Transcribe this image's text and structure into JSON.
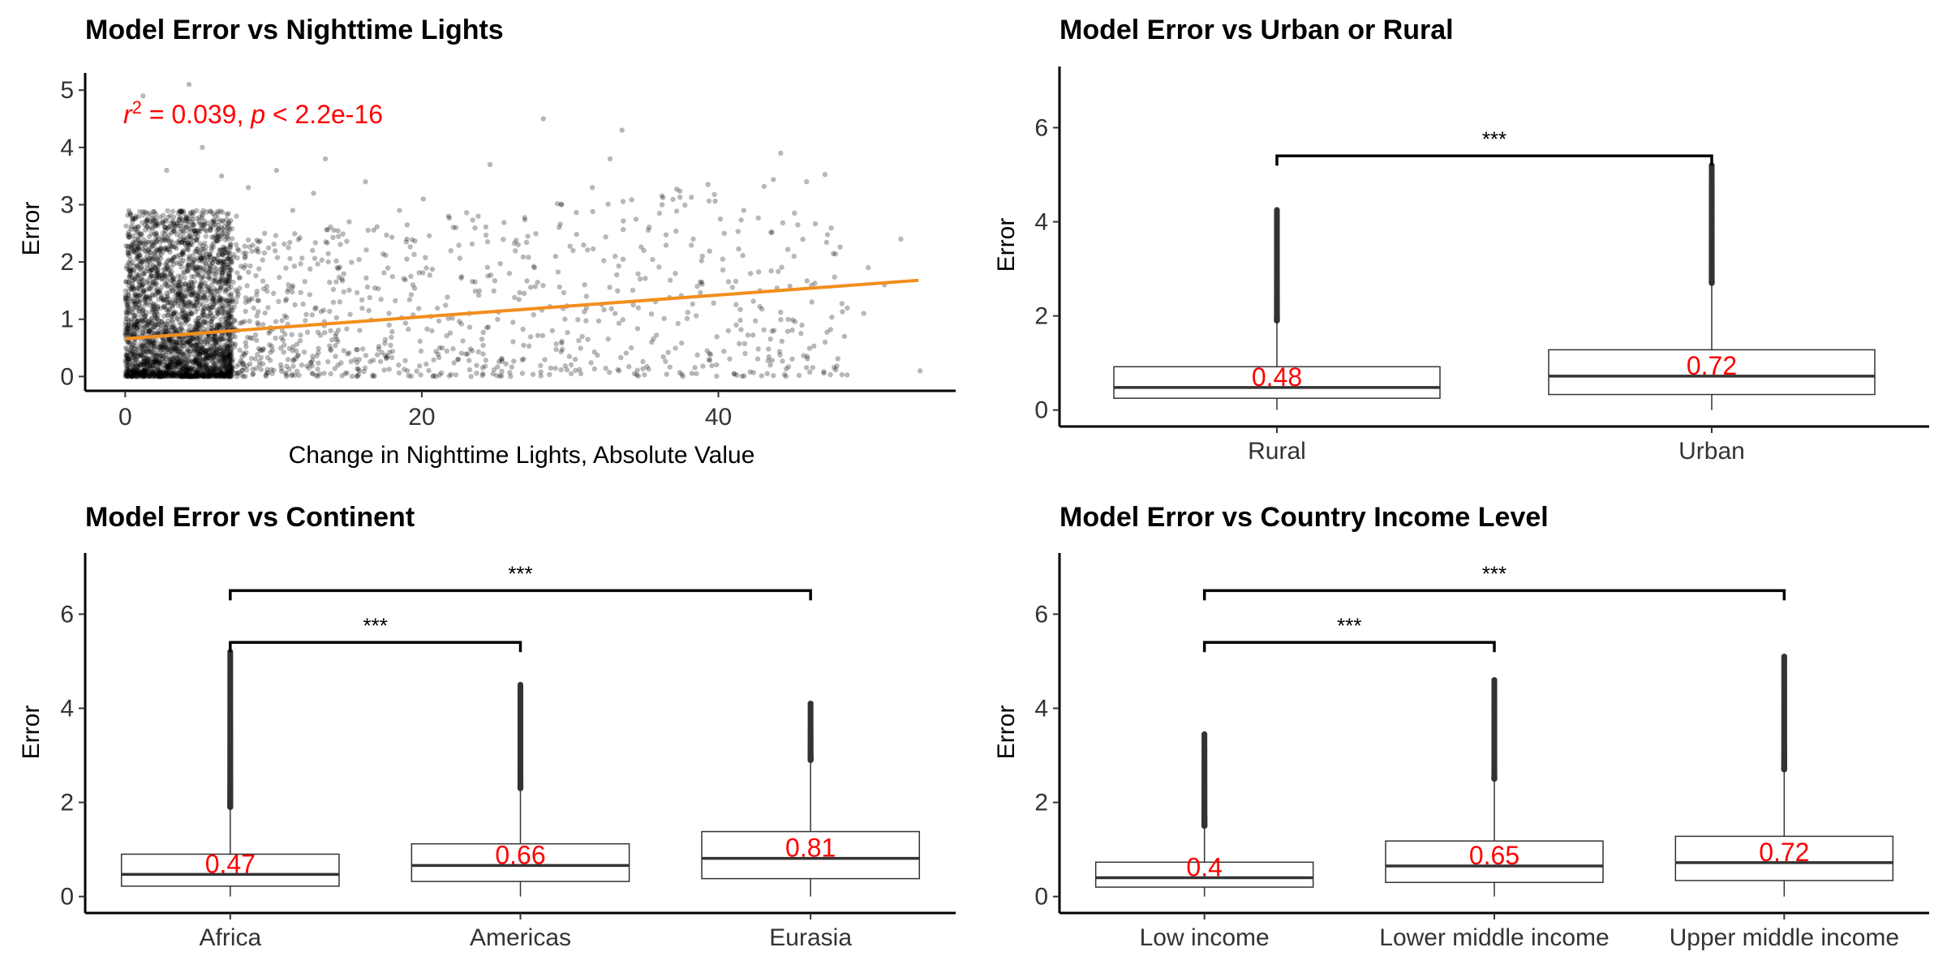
{
  "chart_data": [
    {
      "type": "scatter",
      "title": "Model Error vs Nighttime Lights",
      "xlabel": "Change in Nighttime Lights, Absolute Value",
      "ylabel": "Error",
      "xlim": [
        -2.7,
        56
      ],
      "ylim": [
        -0.25,
        5.3
      ],
      "xticks": [
        0,
        20,
        40
      ],
      "yticks": [
        0,
        1,
        2,
        3,
        4,
        5
      ],
      "point_color": "#000000",
      "trend_color": "#f28e1c",
      "stat_color": "#ff0000",
      "annotation": {
        "prefix": "r",
        "superscript": "2",
        "middle": " = 0.039, ",
        "p": "p",
        "suffix": " < 2.2e-16",
        "x": 0,
        "y": 4.5
      },
      "trend": {
        "x": [
          0,
          53.5
        ],
        "y": [
          0.66,
          1.68
        ]
      },
      "points": [
        [
          1.2,
          4.9
        ],
        [
          4.3,
          5.1
        ],
        [
          33.5,
          4.3
        ],
        [
          28.2,
          4.5
        ],
        [
          44.2,
          3.9
        ],
        [
          2.8,
          3.6
        ],
        [
          5.2,
          4.0
        ],
        [
          13.5,
          3.8
        ],
        [
          6.5,
          3.5
        ],
        [
          24.6,
          3.7
        ],
        [
          31.5,
          3.3
        ],
        [
          29.4,
          3.0
        ],
        [
          20.1,
          3.1
        ],
        [
          23.8,
          2.8
        ],
        [
          32.7,
          3.8
        ],
        [
          36.2,
          3.0
        ],
        [
          40.4,
          2.5
        ],
        [
          45.1,
          2.1
        ],
        [
          50.1,
          1.9
        ],
        [
          52.3,
          2.4
        ],
        [
          53.6,
          0.1
        ],
        [
          49.8,
          1.1
        ],
        [
          47.2,
          0.6
        ],
        [
          42.8,
          1.5
        ],
        [
          38.3,
          2.4
        ],
        [
          35.5,
          0.6
        ],
        [
          33.3,
          0.1
        ],
        [
          30.2,
          2.2
        ],
        [
          27.6,
          1.9
        ],
        [
          25.4,
          0.3
        ],
        [
          22.3,
          2.6
        ],
        [
          18.5,
          2.9
        ],
        [
          16.2,
          3.4
        ],
        [
          15.1,
          2.7
        ],
        [
          12.7,
          3.2
        ],
        [
          11.3,
          2.9
        ],
        [
          10.2,
          3.6
        ],
        [
          9.4,
          2.5
        ],
        [
          8.3,
          3.3
        ],
        [
          7.5,
          2.8
        ],
        [
          39.4,
          0.4
        ],
        [
          41.2,
          0.9
        ],
        [
          46.3,
          1.3
        ],
        [
          43.5,
          0.2
        ],
        [
          37.1,
          1.8
        ],
        [
          34.6,
          1.2
        ],
        [
          21.2,
          0.5
        ],
        [
          19.4,
          1.6
        ],
        [
          17.8,
          0.9
        ],
        [
          14.3,
          1.9
        ],
        [
          26.5,
          2.3
        ],
        [
          28.8,
          0.8
        ],
        [
          31.1,
          1.4
        ],
        [
          23.2,
          1.1
        ],
        [
          48.5,
          0.7
        ],
        [
          51.2,
          1.6
        ]
      ]
    },
    {
      "type": "box",
      "title": "Model Error vs Urban or Rural",
      "xlabel": "",
      "ylabel": "Error",
      "ylim": [
        -0.35,
        7.3
      ],
      "yticks": [
        0,
        2,
        4,
        6
      ],
      "categories": [
        "Rural",
        "Urban"
      ],
      "boxes": [
        {
          "q1": 0.25,
          "median": 0.48,
          "q3": 0.92,
          "low": 0.0,
          "high": 1.9,
          "outlier_max": 4.25
        },
        {
          "q1": 0.33,
          "median": 0.72,
          "q3": 1.28,
          "low": 0.0,
          "high": 2.7,
          "outlier_max": 5.2
        }
      ],
      "median_labels": [
        "0.48",
        "0.72"
      ],
      "comparisons": [
        {
          "from": 0,
          "to": 1,
          "y": 5.4,
          "label": "***"
        }
      ]
    },
    {
      "type": "box",
      "title": "Model Error vs Continent",
      "xlabel": "",
      "ylabel": "Error",
      "ylim": [
        -0.35,
        7.3
      ],
      "yticks": [
        0,
        2,
        4,
        6
      ],
      "categories": [
        "Africa",
        "Americas",
        "Eurasia"
      ],
      "boxes": [
        {
          "q1": 0.22,
          "median": 0.47,
          "q3": 0.9,
          "low": 0.0,
          "high": 1.9,
          "outlier_max": 5.2
        },
        {
          "q1": 0.32,
          "median": 0.66,
          "q3": 1.12,
          "low": 0.0,
          "high": 2.3,
          "outlier_max": 4.5
        },
        {
          "q1": 0.38,
          "median": 0.81,
          "q3": 1.38,
          "low": 0.0,
          "high": 2.9,
          "outlier_max": 4.1
        }
      ],
      "median_labels": [
        "0.47",
        "0.66",
        "0.81"
      ],
      "comparisons": [
        {
          "from": 0,
          "to": 1,
          "y": 5.4,
          "label": "***"
        },
        {
          "from": 0,
          "to": 2,
          "y": 6.5,
          "label": "***"
        }
      ]
    },
    {
      "type": "box",
      "title": "Model Error vs Country Income Level",
      "xlabel": "",
      "ylabel": "Error",
      "ylim": [
        -0.35,
        7.3
      ],
      "yticks": [
        0,
        2,
        4,
        6
      ],
      "categories": [
        "Low income",
        "Lower middle income",
        "Upper middle income"
      ],
      "boxes": [
        {
          "q1": 0.2,
          "median": 0.4,
          "q3": 0.73,
          "low": 0.0,
          "high": 1.5,
          "outlier_max": 3.45
        },
        {
          "q1": 0.3,
          "median": 0.65,
          "q3": 1.18,
          "low": 0.0,
          "high": 2.5,
          "outlier_max": 4.6
        },
        {
          "q1": 0.34,
          "median": 0.72,
          "q3": 1.28,
          "low": 0.0,
          "high": 2.7,
          "outlier_max": 5.1
        }
      ],
      "median_labels": [
        "0.4",
        "0.65",
        "0.72"
      ],
      "comparisons": [
        {
          "from": 0,
          "to": 1,
          "y": 5.4,
          "label": "***"
        },
        {
          "from": 0,
          "to": 2,
          "y": 6.5,
          "label": "***"
        }
      ]
    }
  ]
}
